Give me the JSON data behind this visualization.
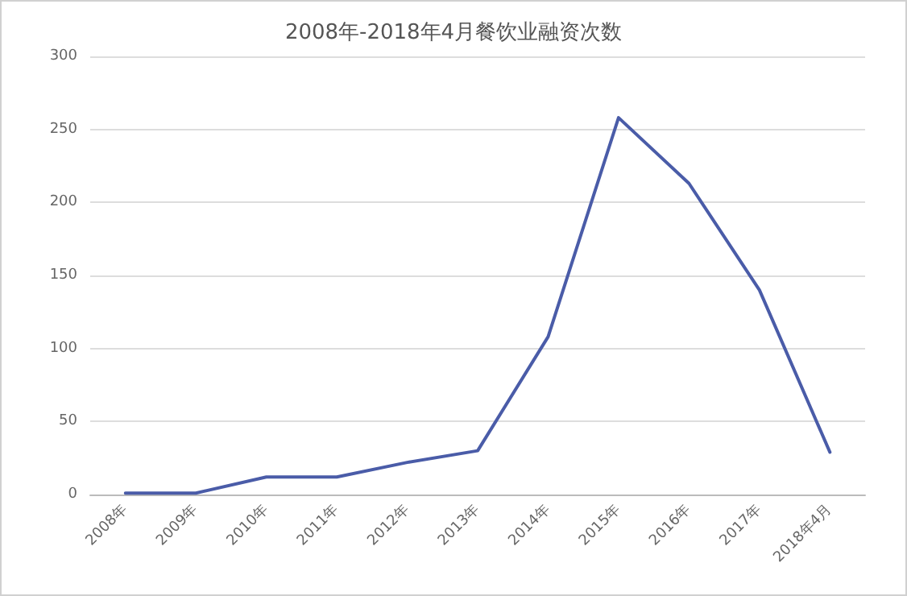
{
  "chart_data": {
    "type": "line",
    "title": "2008年-2018年4月餐饮业融资次数",
    "categories": [
      "2008年",
      "2009年",
      "2010年",
      "2011年",
      "2012年",
      "2013年",
      "2014年",
      "2015年",
      "2016年",
      "2017年",
      "2018年4月"
    ],
    "series": [
      {
        "color": "#4a5ca8",
        "values": [
          1,
          1,
          12,
          12,
          22,
          30,
          108,
          258,
          213,
          140,
          29
        ]
      }
    ],
    "ylim": [
      0,
      300
    ],
    "yticks": [
      0,
      50,
      100,
      150,
      200,
      250,
      300
    ],
    "grid": "y",
    "marker": "none",
    "line_style": "solid"
  }
}
